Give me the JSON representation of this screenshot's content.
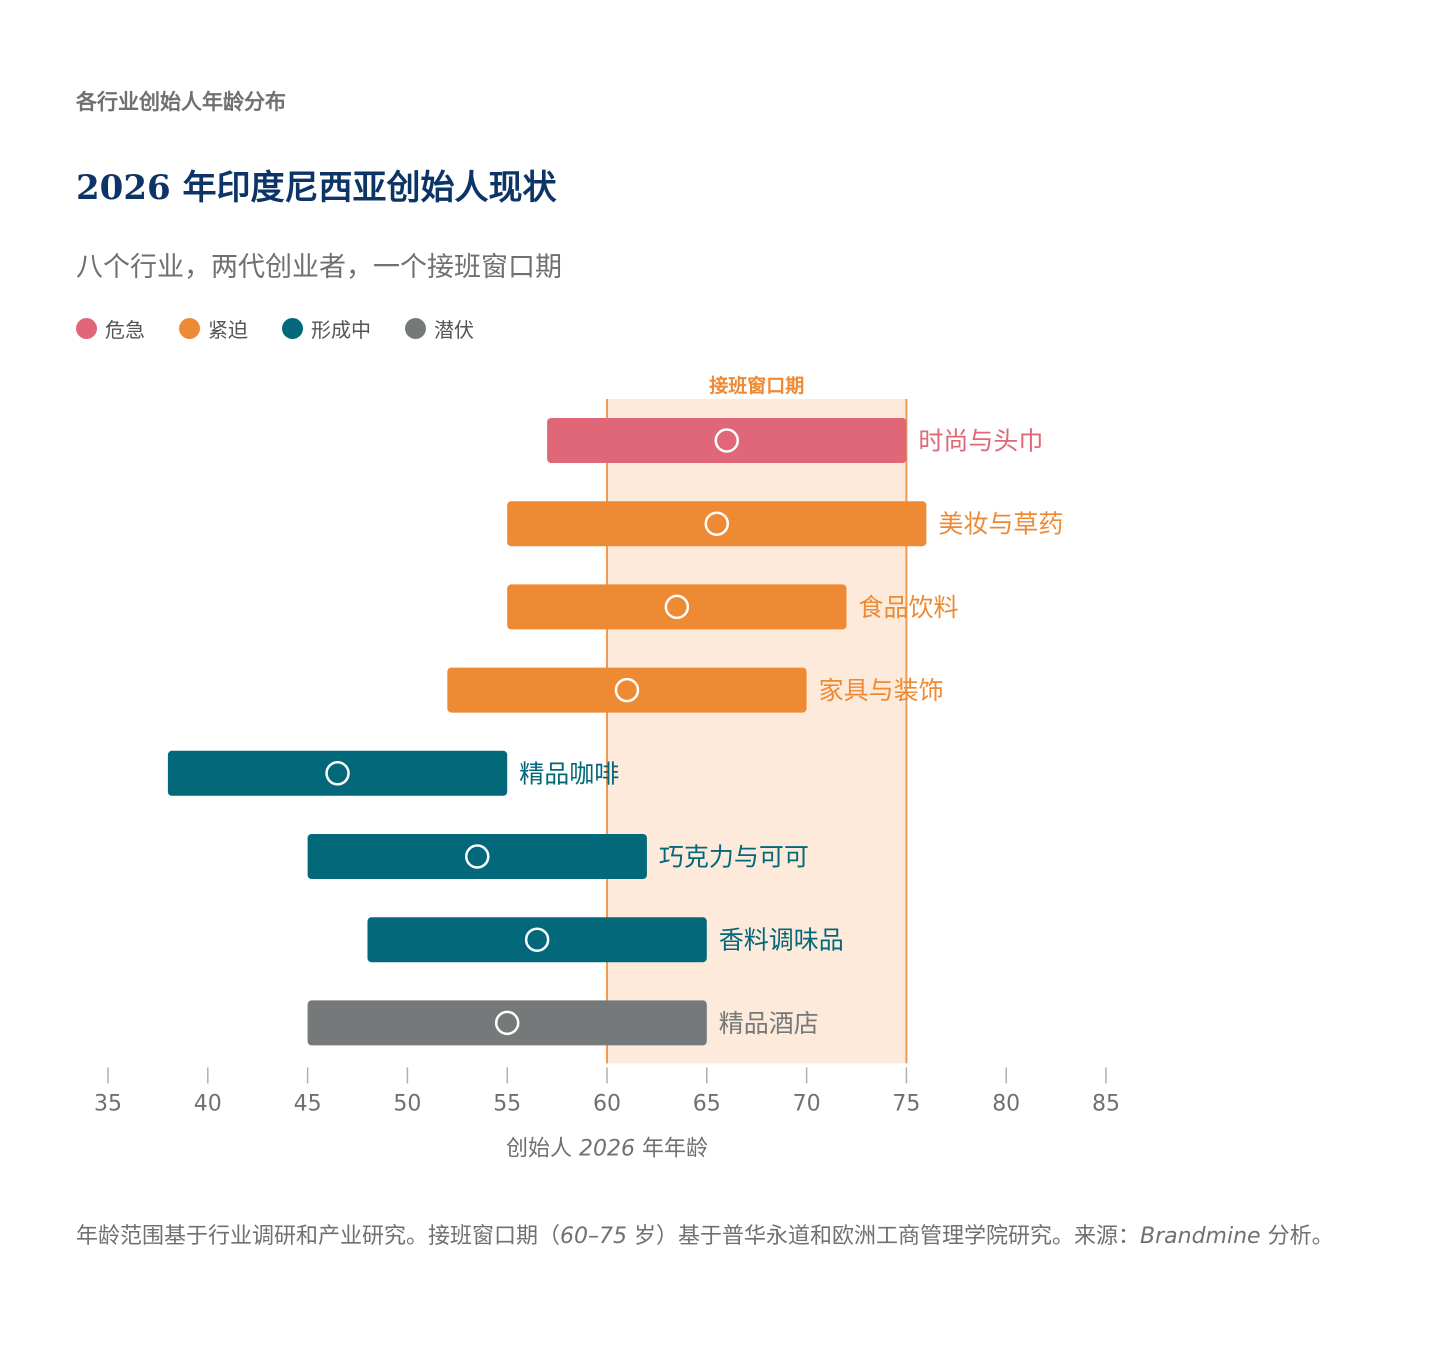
{
  "header": {
    "eyebrow": "各行业创始人年龄分布",
    "title": "2026 年印度尼西亚创始人现状",
    "subtitle": "八个行业，两代创业者，一个接班窗口期"
  },
  "legend": [
    {
      "label": "危急",
      "color": "#df6777"
    },
    {
      "label": "紧迫",
      "color": "#ee8a33"
    },
    {
      "label": "形成中",
      "color": "#02687a"
    },
    {
      "label": "潜伏",
      "color": "#76797a"
    }
  ],
  "footnote": {
    "part1": "年龄范围基于行业调研和产业研究。接班窗口期（",
    "range": "60–75",
    "part2": " 岁）基于普华永道和欧洲工商管理学院研究。来源：",
    "source": "Brandmine",
    "part3": " 分析。"
  },
  "chart_data": {
    "type": "range-bar",
    "xlim": [
      35,
      85
    ],
    "xticks": [
      35,
      40,
      45,
      50,
      55,
      60,
      65,
      70,
      75,
      80,
      85
    ],
    "xlabel_parts": [
      "创始人 ",
      "2026",
      " 年年龄"
    ],
    "window": {
      "label": "接班窗口期",
      "start": 60,
      "end": 75,
      "fill": "#fdeadb",
      "line": "#ee9a55",
      "label_color": "#ee8a33"
    },
    "series": [
      {
        "category": "时尚与头巾",
        "min": 57,
        "max": 75,
        "median": 66,
        "status": "危急",
        "color": "#df6777"
      },
      {
        "category": "美妆与草药",
        "min": 55,
        "max": 76,
        "median": 65.5,
        "status": "紧迫",
        "color": "#ee8a33"
      },
      {
        "category": "食品饮料",
        "min": 55,
        "max": 72,
        "median": 63.5,
        "status": "紧迫",
        "color": "#ee8a33"
      },
      {
        "category": "家具与装饰",
        "min": 52,
        "max": 70,
        "median": 61,
        "status": "紧迫",
        "color": "#ee8a33"
      },
      {
        "category": "精品咖啡",
        "min": 38,
        "max": 55,
        "median": 46.5,
        "status": "形成中",
        "color": "#02687a"
      },
      {
        "category": "巧克力与可可",
        "min": 45,
        "max": 62,
        "median": 53.5,
        "status": "形成中",
        "color": "#02687a"
      },
      {
        "category": "香料调味品",
        "min": 48,
        "max": 65,
        "median": 56.5,
        "status": "形成中",
        "color": "#02687a"
      },
      {
        "category": "精品酒店",
        "min": 45,
        "max": 65,
        "median": 55,
        "status": "潜伏",
        "color": "#76797a"
      }
    ]
  }
}
